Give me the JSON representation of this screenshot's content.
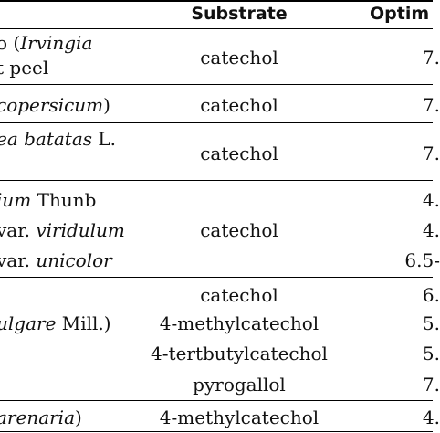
{
  "headers": {
    "substrate": "Substrate",
    "optimum": "Optim"
  },
  "rows": [
    {
      "source_lines": [
        [
          {
            "t": "o (",
            "i": false
          },
          {
            "t": "Irvingia",
            "i": true
          }
        ],
        [
          {
            "t": "t peel",
            "i": false
          }
        ]
      ],
      "substrate": [
        "catechol"
      ],
      "optimum": [
        "7."
      ]
    },
    {
      "source_lines": [
        [
          {
            "t": "copersicum",
            "i": true
          },
          {
            "t": ")",
            "i": false
          }
        ]
      ],
      "substrate": [
        "catechol"
      ],
      "optimum": [
        "7."
      ]
    },
    {
      "source_lines": [
        [
          {
            "t": "ea batatas",
            "i": true
          },
          {
            "t": " L.",
            "i": false
          }
        ]
      ],
      "substrate": [
        "catechol"
      ],
      "optimum": [
        "7."
      ]
    },
    {
      "source_lines": [
        [
          {
            "t": "ium",
            "i": true
          },
          {
            "t": " Thunb",
            "i": false
          }
        ],
        [
          {
            "t": "var. ",
            "i": false
          },
          {
            "t": "viridulum",
            "i": true
          }
        ],
        [
          {
            "t": "var. ",
            "i": false
          },
          {
            "t": "unicolor",
            "i": true
          }
        ]
      ],
      "substrate": [
        "catechol"
      ],
      "optimum": [
        "4.",
        "4.",
        "6.5-"
      ]
    },
    {
      "source_lines": [
        [
          {
            "t": "ulgare",
            "i": true
          },
          {
            "t": " Mill.)",
            "i": false
          }
        ]
      ],
      "substrate": [
        "catechol",
        "4-methylcatechol",
        "4-tertbutylcatechol",
        "pyrogallol"
      ],
      "optimum": [
        "6.",
        "5.",
        "5.",
        "7."
      ]
    },
    {
      "source_lines": [
        [
          {
            "t": "arenaria",
            "i": true
          },
          {
            "t": ")",
            "i": false
          }
        ]
      ],
      "substrate": [
        "4-methylcatechol"
      ],
      "optimum": [
        "4."
      ]
    }
  ]
}
